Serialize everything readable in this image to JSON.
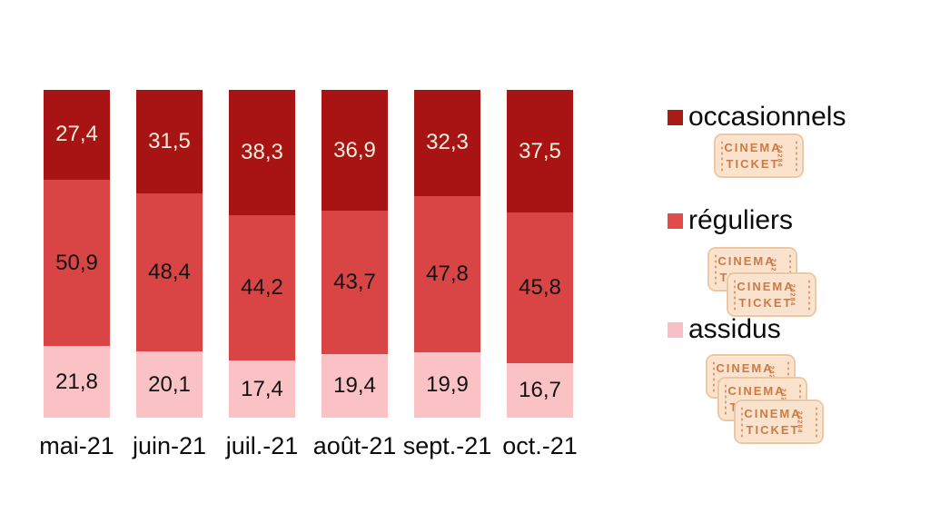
{
  "chart_data": {
    "type": "bar",
    "stacked": true,
    "orientation": "vertical",
    "unit": "percent",
    "title": "",
    "xlabel": "",
    "ylabel": "",
    "ylim": [
      0,
      100
    ],
    "grid": false,
    "legend_position": "right",
    "categories": [
      "mai-21",
      "juin-21",
      "juil.-21",
      "août-21",
      "sept.-21",
      "oct.-21"
    ],
    "series": [
      {
        "key": "occasionnels",
        "name": "occasionnels",
        "stack_position": "top",
        "color": "#A81414",
        "label_color": "#F7EFDB",
        "values": [
          27.4,
          31.5,
          38.3,
          36.9,
          32.3,
          37.5
        ],
        "labels": [
          "27,4",
          "31,5",
          "38,3",
          "36,9",
          "32,3",
          "37,5"
        ]
      },
      {
        "key": "reguliers",
        "name": "réguliers",
        "stack_position": "middle",
        "color": "#D94545",
        "label_color": "#121212",
        "values": [
          50.9,
          48.4,
          44.2,
          43.7,
          47.8,
          45.8
        ],
        "labels": [
          "50,9",
          "48,4",
          "44,2",
          "43,7",
          "47,8",
          "45,8"
        ]
      },
      {
        "key": "assidus",
        "name": "assidus",
        "stack_position": "bottom",
        "color": "#FBC2C6",
        "label_color": "#121212",
        "values": [
          21.8,
          20.1,
          17.4,
          19.4,
          19.9,
          16.7
        ],
        "labels": [
          "21,8",
          "20,1",
          "17,4",
          "19,4",
          "19,9",
          "16,7"
        ]
      }
    ]
  },
  "legend": {
    "items": [
      {
        "key": "occasionnels",
        "label": "occasionnels",
        "swatch_color": "#A81C17",
        "ticket_count": 1
      },
      {
        "key": "reguliers",
        "label": "réguliers",
        "swatch_color": "#E34A4A",
        "ticket_count": 2
      },
      {
        "key": "assidus",
        "label": "assidus",
        "swatch_color": "#FABFC6",
        "ticket_count": 3
      }
    ],
    "ticket": {
      "line1": "CINEMA",
      "line2": "TICKET",
      "serial": "24284"
    }
  },
  "colors": {
    "background": "#FFFFFF",
    "text": "#000000"
  }
}
